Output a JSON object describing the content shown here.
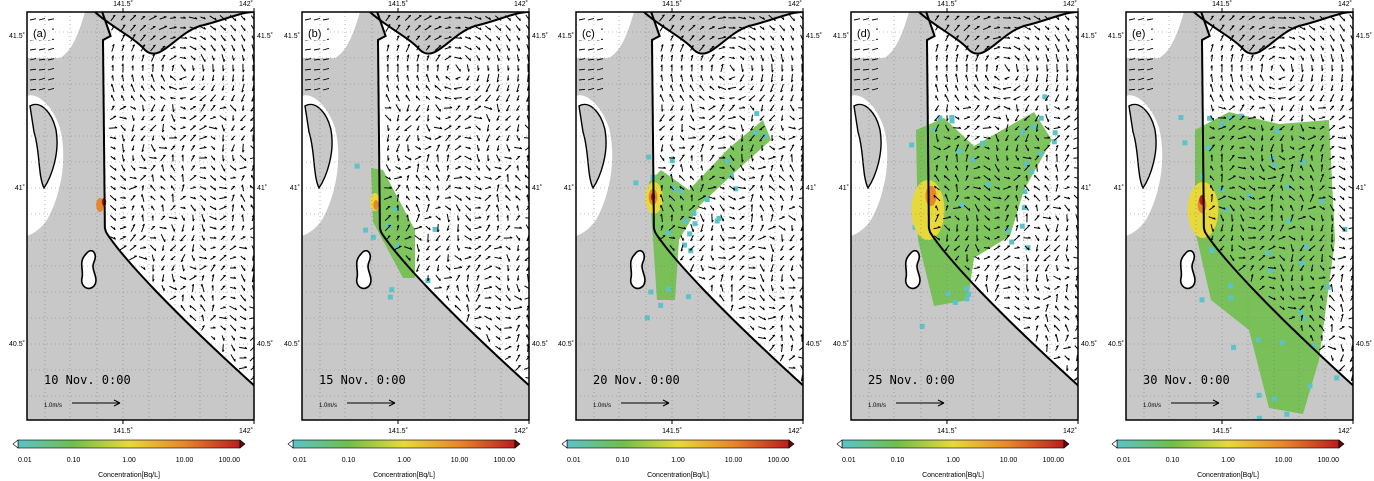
{
  "panels": [
    {
      "label": "(a)",
      "date": "10 Nov. 0:00"
    },
    {
      "label": "(b)",
      "date": "15 Nov. 0:00"
    },
    {
      "label": "(c)",
      "date": "20 Nov. 0:00"
    },
    {
      "label": "(d)",
      "date": "25 Nov. 0:00"
    },
    {
      "label": "(e)",
      "date": "30 Nov. 0:00"
    }
  ],
  "axes": {
    "lon_ticks": [
      "141.5˚",
      "142˚"
    ],
    "lat_ticks": [
      "41.5˚",
      "41˚",
      "40.5˚"
    ]
  },
  "vector_scale_label": "1.0m/s",
  "colorbar": {
    "title": "Concentration[Bq/L]",
    "ticks": [
      "0.01",
      "0.10",
      "1.00",
      "10.00",
      "100.00"
    ],
    "colors": [
      "#5cc3c8",
      "#6fbf4a",
      "#e8d93a",
      "#e8862a",
      "#b81e1e"
    ],
    "scale": "log"
  },
  "colors": {
    "land": "#c8c8c8",
    "sea": "#ffffff",
    "arrow": "#000000",
    "grid": "#808080"
  }
}
